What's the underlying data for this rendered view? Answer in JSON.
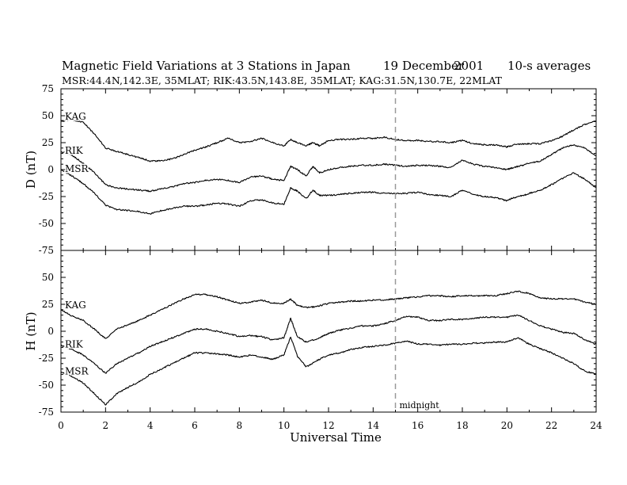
{
  "header": {
    "title": "Magnetic Field Variations at 3 Stations in Japan",
    "date_day": "19",
    "date_month": "December",
    "date_year": "2001",
    "averaging": "10-s averages",
    "subtitle": "MSR:44.4N,142.3E, 35MLAT;   RIK:43.5N,143.8E, 35MLAT;   KAG:31.5N,130.7E, 22MLAT"
  },
  "annotations": {
    "midnight_label": "midnight",
    "midnight_ut": 15
  },
  "colors": {
    "trace": "#000000",
    "midnight_line": "#999999",
    "axis": "#000000"
  },
  "chart_data": [
    {
      "type": "line",
      "panel": "D",
      "ylabel": "D (nT)",
      "ylim": [
        -75,
        75
      ],
      "yticks": [
        -75,
        -50,
        -25,
        0,
        25,
        50,
        75
      ],
      "xlim": [
        0,
        24
      ],
      "xticks": [
        0,
        2,
        4,
        6,
        8,
        10,
        12,
        14,
        16,
        18,
        20,
        22,
        24
      ],
      "xlabel": "",
      "grid": false,
      "series": [
        {
          "name": "KAG",
          "x": [
            0,
            0.5,
            1,
            1.5,
            2,
            2.5,
            3,
            3.5,
            4,
            4.5,
            5,
            5.5,
            6,
            6.5,
            7,
            7.5,
            8,
            8.5,
            9,
            9.5,
            10,
            10.3,
            10.6,
            11,
            11.3,
            11.6,
            12,
            12.5,
            13,
            13.5,
            14,
            14.5,
            15,
            15.5,
            16,
            16.5,
            17,
            17.5,
            18,
            18.5,
            19,
            19.5,
            20,
            20.3,
            20.7,
            21,
            21.5,
            22,
            22.5,
            23,
            23.5,
            24
          ],
          "y": [
            45,
            46,
            44,
            33,
            20,
            17,
            14,
            11,
            8,
            8,
            10,
            14,
            18,
            21,
            25,
            29,
            25,
            26,
            29,
            25,
            22,
            28,
            25,
            22,
            25,
            22,
            27,
            28,
            28,
            29,
            29,
            30,
            28,
            27,
            27,
            26,
            26,
            25,
            27,
            24,
            23,
            23,
            21,
            23,
            24,
            24,
            24,
            27,
            31,
            37,
            42,
            45
          ]
        },
        {
          "name": "RIK",
          "x": [
            0,
            0.5,
            1,
            1.5,
            2,
            2.5,
            3,
            3.5,
            4,
            4.5,
            5,
            5.5,
            6,
            6.5,
            7,
            7.5,
            8,
            8.5,
            9,
            9.5,
            10,
            10.3,
            10.6,
            11,
            11.3,
            11.6,
            12,
            12.5,
            13,
            13.5,
            14,
            14.5,
            15,
            15.5,
            16,
            16.5,
            17,
            17.5,
            18,
            18.5,
            19,
            19.5,
            20,
            20.3,
            20.7,
            21,
            21.5,
            22,
            22.5,
            23,
            23.5,
            24
          ],
          "y": [
            17,
            13,
            6,
            -3,
            -14,
            -17,
            -18,
            -19,
            -20,
            -18,
            -16,
            -13,
            -12,
            -10,
            -9,
            -10,
            -12,
            -7,
            -6,
            -9,
            -10,
            3,
            0,
            -6,
            3,
            -3,
            0,
            2,
            3,
            4,
            4,
            5,
            4,
            3,
            4,
            4,
            3,
            2,
            9,
            5,
            3,
            2,
            0,
            2,
            4,
            6,
            8,
            14,
            20,
            23,
            20,
            13
          ]
        },
        {
          "name": "MSR",
          "x": [
            0,
            0.5,
            1,
            1.5,
            2,
            2.5,
            3,
            3.5,
            4,
            4.5,
            5,
            5.5,
            6,
            6.5,
            7,
            7.5,
            8,
            8.5,
            9,
            9.5,
            10,
            10.3,
            10.6,
            11,
            11.3,
            11.6,
            12,
            12.5,
            13,
            13.5,
            14,
            14.5,
            15,
            15.5,
            16,
            16.5,
            17,
            17.5,
            18,
            18.5,
            19,
            19.5,
            20,
            20.3,
            20.7,
            21,
            21.5,
            22,
            22.5,
            23,
            23.5,
            24
          ],
          "y": [
            0,
            -6,
            -13,
            -22,
            -33,
            -37,
            -38,
            -39,
            -41,
            -38,
            -36,
            -34,
            -34,
            -33,
            -31,
            -32,
            -34,
            -29,
            -28,
            -31,
            -32,
            -17,
            -20,
            -27,
            -19,
            -24,
            -24,
            -23,
            -22,
            -21,
            -21,
            -22,
            -22,
            -22,
            -21,
            -23,
            -24,
            -25,
            -19,
            -23,
            -25,
            -26,
            -29,
            -26,
            -24,
            -22,
            -19,
            -14,
            -8,
            -3,
            -9,
            -17
          ]
        }
      ]
    },
    {
      "type": "line",
      "panel": "H",
      "ylabel": "H (nT)",
      "ylim": [
        -75,
        75
      ],
      "yticks": [
        -75,
        -50,
        -25,
        0,
        25,
        50,
        75
      ],
      "xlim": [
        0,
        24
      ],
      "xticks": [
        0,
        2,
        4,
        6,
        8,
        10,
        12,
        14,
        16,
        18,
        20,
        22,
        24
      ],
      "xlabel": "Universal Time",
      "grid": false,
      "series": [
        {
          "name": "KAG",
          "x": [
            0,
            0.5,
            1,
            1.5,
            2,
            2.5,
            3,
            3.5,
            4,
            4.5,
            5,
            5.5,
            6,
            6.5,
            7,
            7.5,
            8,
            8.5,
            9,
            9.5,
            10,
            10.3,
            10.6,
            11,
            11.5,
            12,
            12.5,
            13,
            13.5,
            14,
            14.5,
            15,
            15.5,
            16,
            16.5,
            17,
            17.5,
            18,
            18.5,
            19,
            19.5,
            20,
            20.5,
            21,
            21.5,
            22,
            22.5,
            23,
            23.5,
            24
          ],
          "y": [
            20,
            14,
            10,
            2,
            -7,
            2,
            6,
            10,
            15,
            20,
            25,
            30,
            34,
            34,
            32,
            29,
            26,
            27,
            29,
            26,
            26,
            30,
            24,
            22,
            23,
            26,
            27,
            28,
            28,
            29,
            29,
            30,
            31,
            32,
            33,
            33,
            32,
            33,
            33,
            33,
            33,
            35,
            37,
            35,
            31,
            30,
            30,
            30,
            27,
            25
          ]
        },
        {
          "name": "RIK",
          "x": [
            0,
            0.5,
            1,
            1.5,
            2,
            2.5,
            3,
            3.5,
            4,
            4.5,
            5,
            5.5,
            6,
            6.5,
            7,
            7.5,
            8,
            8.5,
            9,
            9.5,
            10,
            10.3,
            10.6,
            11,
            11.5,
            12,
            12.5,
            13,
            13.5,
            14,
            14.5,
            15,
            15.5,
            16,
            16.5,
            17,
            17.5,
            18,
            18.5,
            19,
            19.5,
            20,
            20.5,
            21,
            21.5,
            22,
            22.5,
            23,
            23.5,
            24
          ],
          "y": [
            -13,
            -17,
            -22,
            -30,
            -39,
            -30,
            -25,
            -20,
            -14,
            -10,
            -6,
            -2,
            2,
            2,
            0,
            -2,
            -5,
            -4,
            -5,
            -8,
            -6,
            12,
            -5,
            -10,
            -7,
            -2,
            1,
            3,
            5,
            5,
            7,
            10,
            14,
            13,
            10,
            10,
            11,
            11,
            12,
            13,
            13,
            13,
            15,
            10,
            5,
            2,
            -1,
            -2,
            -8,
            -12
          ]
        },
        {
          "name": "MSR",
          "x": [
            0,
            0.5,
            1,
            1.5,
            2,
            2.5,
            3,
            3.5,
            4,
            4.5,
            5,
            5.5,
            6,
            6.5,
            7,
            7.5,
            8,
            8.5,
            9,
            9.5,
            10,
            10.3,
            10.6,
            11,
            11.5,
            12,
            12.5,
            13,
            13.5,
            14,
            14.5,
            15,
            15.5,
            16,
            16.5,
            17,
            17.5,
            18,
            18.5,
            19,
            19.5,
            20,
            20.5,
            21,
            21.5,
            22,
            22.5,
            23,
            23.5,
            24
          ],
          "y": [
            -38,
            -42,
            -48,
            -58,
            -68,
            -58,
            -52,
            -47,
            -40,
            -35,
            -30,
            -25,
            -20,
            -20,
            -21,
            -22,
            -24,
            -22,
            -24,
            -26,
            -22,
            -5,
            -23,
            -33,
            -27,
            -22,
            -20,
            -17,
            -15,
            -14,
            -13,
            -11,
            -9,
            -12,
            -12,
            -13,
            -12,
            -12,
            -11,
            -11,
            -10,
            -10,
            -6,
            -12,
            -16,
            -20,
            -25,
            -30,
            -37,
            -40
          ]
        }
      ]
    }
  ]
}
